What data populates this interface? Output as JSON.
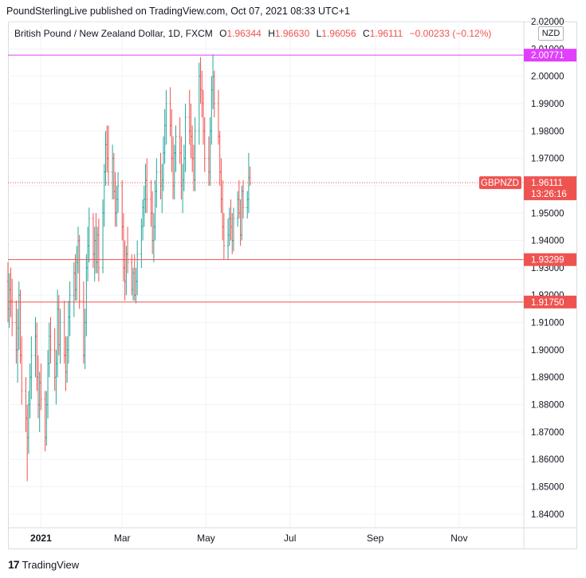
{
  "header": {
    "publisher_line": "PoundSterlingLive published on TradingView.com, Oct 07, 2021 08:33 UTC+1"
  },
  "legend": {
    "symbol": "British Pound / New Zealand Dollar, 1D, FXCM",
    "open_label": "O",
    "open": "1.96344",
    "high_label": "H",
    "high": "1.96630",
    "low_label": "L",
    "low": "1.96056",
    "close_label": "C",
    "close": "1.96111",
    "change": "−0.00233 (−0.12%)"
  },
  "currency_badge": "NZD",
  "footer": {
    "brand": "TradingView",
    "logo_glyph": "17"
  },
  "colors": {
    "up": "#26a69a",
    "down": "#ef5350",
    "magenta": "#e040fb",
    "red_line": "#ef5350",
    "grid": "#f0f3fa"
  },
  "chart_data": {
    "type": "ohlc",
    "symbol": "GBPNZD",
    "y_range": [
      1.835,
      2.02
    ],
    "y_ticks": [
      "1.84000",
      "1.85000",
      "1.86000",
      "1.87000",
      "1.88000",
      "1.89000",
      "1.90000",
      "1.91000",
      "1.92000",
      "1.93000",
      "1.94000",
      "1.95000",
      "1.96000",
      "1.97000",
      "1.98000",
      "1.99000",
      "2.00000",
      "2.01000",
      "2.02000"
    ],
    "x_range": [
      "2020-12-08",
      "2021-12-18"
    ],
    "x_ticks": [
      {
        "date": "2021-01-01",
        "label": "2021"
      },
      {
        "date": "2021-03-01",
        "label": "Mar"
      },
      {
        "date": "2021-05-01",
        "label": "May"
      },
      {
        "date": "2021-07-01",
        "label": "Jul"
      },
      {
        "date": "2021-09-01",
        "label": "Sep"
      },
      {
        "date": "2021-11-01",
        "label": "Nov"
      }
    ],
    "horizontal_lines": [
      {
        "value": 2.00771,
        "label": "2.00771",
        "color": "#e040fb",
        "style": "solid"
      },
      {
        "value": 1.93299,
        "label": "1.93299",
        "color": "#ef5350",
        "style": "solid"
      },
      {
        "value": 1.9175,
        "label": "1.91750",
        "color": "#ef5350",
        "style": "solid"
      }
    ],
    "last_price": {
      "value": 1.96111,
      "label": "1.96111",
      "symbol": "GBPNZD",
      "countdown": "13:26:16"
    },
    "series": [
      {
        "name": "GBPNZD",
        "start_date": "2020-12-08",
        "bars": [
          [
            1.925,
            1.932,
            1.91,
            1.915
          ],
          [
            1.915,
            1.928,
            1.908,
            1.922
          ],
          [
            1.922,
            1.93,
            1.912,
            1.918
          ],
          [
            1.918,
            1.926,
            1.905,
            1.91
          ],
          [
            1.91,
            1.918,
            1.895,
            1.9
          ],
          [
            1.9,
            1.915,
            1.888,
            1.908
          ],
          [
            1.908,
            1.925,
            1.9,
            1.92
          ],
          [
            1.92,
            1.922,
            1.895,
            1.898
          ],
          [
            1.898,
            1.905,
            1.88,
            1.885
          ],
          [
            1.885,
            1.89,
            1.87,
            1.875
          ],
          [
            1.875,
            1.88,
            1.852,
            1.868
          ],
          [
            1.868,
            1.885,
            1.862,
            1.88
          ],
          [
            1.88,
            1.895,
            1.875,
            1.89
          ],
          [
            1.89,
            1.905,
            1.882,
            1.898
          ],
          [
            1.898,
            1.912,
            1.89,
            1.905
          ],
          [
            1.905,
            1.91,
            1.885,
            1.89
          ],
          [
            1.89,
            1.898,
            1.875,
            1.88
          ],
          [
            1.88,
            1.892,
            1.87,
            1.888
          ],
          [
            1.888,
            1.895,
            1.878,
            1.882
          ],
          [
            1.882,
            1.885,
            1.863,
            1.868
          ],
          [
            1.868,
            1.885,
            1.865,
            1.88
          ],
          [
            1.88,
            1.9,
            1.875,
            1.895
          ],
          [
            1.895,
            1.91,
            1.89,
            1.905
          ],
          [
            1.905,
            1.912,
            1.895,
            1.9
          ],
          [
            1.9,
            1.908,
            1.885,
            1.89
          ],
          [
            1.89,
            1.9,
            1.88,
            1.895
          ],
          [
            1.895,
            1.922,
            1.89,
            1.915
          ],
          [
            1.915,
            1.92,
            1.898,
            1.902
          ],
          [
            1.902,
            1.915,
            1.895,
            1.91
          ],
          [
            1.91,
            1.918,
            1.895,
            1.898
          ],
          [
            1.898,
            1.905,
            1.885,
            1.892
          ],
          [
            1.892,
            1.905,
            1.888,
            1.9
          ],
          [
            1.9,
            1.918,
            1.895,
            1.912
          ],
          [
            1.912,
            1.925,
            1.905,
            1.92
          ],
          [
            1.92,
            1.932,
            1.912,
            1.928
          ],
          [
            1.928,
            1.935,
            1.918,
            1.922
          ],
          [
            1.922,
            1.938,
            1.918,
            1.932
          ],
          [
            1.932,
            1.945,
            1.928,
            1.94
          ],
          [
            1.94,
            1.942,
            1.915,
            1.918
          ],
          [
            1.918,
            1.925,
            1.895,
            1.898
          ],
          [
            1.898,
            1.915,
            1.893,
            1.91
          ],
          [
            1.91,
            1.935,
            1.905,
            1.93
          ],
          [
            1.93,
            1.945,
            1.925,
            1.938
          ],
          [
            1.938,
            1.952,
            1.932,
            1.948
          ],
          [
            1.948,
            1.95,
            1.93,
            1.935
          ],
          [
            1.935,
            1.945,
            1.925,
            1.94
          ],
          [
            1.94,
            1.95,
            1.928,
            1.932
          ],
          [
            1.932,
            1.945,
            1.928,
            1.942
          ],
          [
            1.942,
            1.948,
            1.925,
            1.93
          ],
          [
            1.93,
            1.955,
            1.928,
            1.95
          ],
          [
            1.95,
            1.968,
            1.945,
            1.965
          ],
          [
            1.965,
            1.98,
            1.96,
            1.975
          ],
          [
            1.975,
            1.982,
            1.965,
            1.97
          ],
          [
            1.97,
            1.982,
            1.96,
            1.965
          ],
          [
            1.965,
            1.975,
            1.955,
            1.97
          ],
          [
            1.97,
            1.972,
            1.955,
            1.958
          ],
          [
            1.958,
            1.965,
            1.945,
            1.95
          ],
          [
            1.95,
            1.96,
            1.945,
            1.955
          ],
          [
            1.955,
            1.965,
            1.95,
            1.96
          ],
          [
            1.96,
            1.962,
            1.94,
            1.945
          ],
          [
            1.945,
            1.95,
            1.925,
            1.93
          ],
          [
            1.93,
            1.94,
            1.918,
            1.925
          ],
          [
            1.925,
            1.938,
            1.92,
            1.935
          ],
          [
            1.935,
            1.945,
            1.928,
            1.932
          ],
          [
            1.932,
            1.935,
            1.92,
            1.922
          ],
          [
            1.922,
            1.93,
            1.918,
            1.928
          ],
          [
            1.928,
            1.935,
            1.918,
            1.92
          ],
          [
            1.92,
            1.93,
            1.917,
            1.925
          ],
          [
            1.925,
            1.94,
            1.92,
            1.935
          ],
          [
            1.935,
            1.948,
            1.93,
            1.945
          ],
          [
            1.945,
            1.955,
            1.94,
            1.952
          ],
          [
            1.952,
            1.96,
            1.945,
            1.955
          ],
          [
            1.955,
            1.968,
            1.95,
            1.962
          ],
          [
            1.962,
            1.97,
            1.95,
            1.955
          ],
          [
            1.955,
            1.962,
            1.945,
            1.95
          ],
          [
            1.95,
            1.958,
            1.935,
            1.94
          ],
          [
            1.94,
            1.95,
            1.932,
            1.945
          ],
          [
            1.945,
            1.962,
            1.94,
            1.958
          ],
          [
            1.958,
            1.97,
            1.952,
            1.965
          ],
          [
            1.965,
            1.972,
            1.955,
            1.96
          ],
          [
            1.96,
            1.968,
            1.95,
            1.962
          ],
          [
            1.962,
            1.978,
            1.958,
            1.972
          ],
          [
            1.972,
            1.988,
            1.968,
            1.982
          ],
          [
            1.982,
            1.995,
            1.975,
            1.99
          ],
          [
            1.99,
            1.996,
            1.978,
            1.982
          ],
          [
            1.982,
            1.988,
            1.965,
            1.97
          ],
          [
            1.97,
            1.978,
            1.955,
            1.96
          ],
          [
            1.96,
            1.975,
            1.955,
            1.972
          ],
          [
            1.972,
            1.982,
            1.965,
            1.978
          ],
          [
            1.978,
            1.985,
            1.968,
            1.972
          ],
          [
            1.972,
            1.978,
            1.955,
            1.96
          ],
          [
            1.96,
            1.968,
            1.95,
            1.962
          ],
          [
            1.962,
            1.975,
            1.958,
            1.97
          ],
          [
            1.97,
            1.99,
            1.965,
            1.985
          ],
          [
            1.985,
            1.995,
            1.975,
            1.98
          ],
          [
            1.98,
            1.99,
            1.97,
            1.978
          ],
          [
            1.978,
            1.982,
            1.965,
            1.97
          ],
          [
            1.97,
            1.975,
            1.958,
            1.962
          ],
          [
            1.962,
            1.985,
            1.958,
            1.98
          ],
          [
            1.98,
            2.005,
            1.975,
            2.0
          ],
          [
            2.0,
            2.007,
            1.99,
            1.995
          ],
          [
            1.995,
            2.002,
            1.985,
            1.99
          ],
          [
            1.99,
            1.995,
            1.975,
            1.98
          ],
          [
            1.98,
            1.985,
            1.965,
            1.97
          ],
          [
            1.97,
            1.978,
            1.96,
            1.965
          ],
          [
            1.965,
            1.985,
            1.96,
            1.98
          ],
          [
            1.98,
            2.0,
            1.975,
            1.995
          ],
          [
            1.995,
            2.008,
            1.988,
            2.0
          ],
          [
            2.0,
            2.002,
            1.985,
            1.99
          ],
          [
            1.99,
            1.995,
            1.975,
            1.978
          ],
          [
            1.978,
            1.98,
            1.96,
            1.965
          ],
          [
            1.965,
            1.97,
            1.95,
            1.955
          ],
          [
            1.955,
            1.962,
            1.94,
            1.945
          ],
          [
            1.945,
            1.95,
            1.933,
            1.938
          ],
          [
            1.938,
            1.948,
            1.933,
            1.942
          ],
          [
            1.942,
            1.952,
            1.938,
            1.948
          ],
          [
            1.948,
            1.955,
            1.94,
            1.945
          ],
          [
            1.945,
            1.95,
            1.935,
            1.94
          ],
          [
            1.94,
            1.952,
            1.936,
            1.948
          ],
          [
            1.948,
            1.958,
            1.945,
            1.955
          ],
          [
            1.955,
            1.962,
            1.948,
            1.95
          ],
          [
            1.95,
            1.955,
            1.938,
            1.942
          ],
          [
            1.942,
            1.96,
            1.94,
            1.958
          ],
          [
            1.958,
            1.962,
            1.948,
            1.952
          ],
          [
            1.952,
            1.958,
            1.948,
            1.955
          ],
          [
            1.955,
            1.972,
            1.95,
            1.963
          ],
          [
            1.963,
            1.967,
            1.96,
            1.961
          ]
        ]
      }
    ]
  }
}
